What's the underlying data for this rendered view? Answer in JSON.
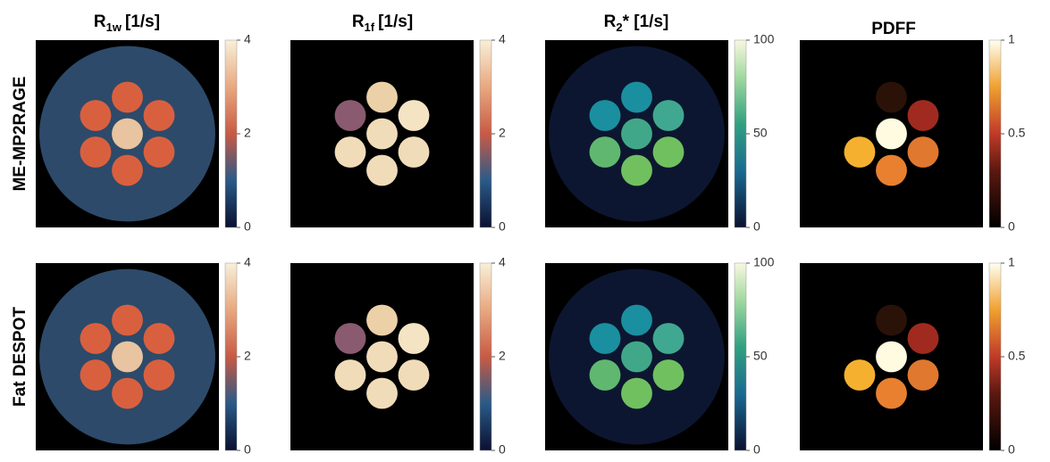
{
  "columns": [
    {
      "title": {
        "base": "R",
        "sub": "1w",
        "unit": "[1/s]"
      },
      "colorbar": {
        "lim": [
          0,
          4
        ],
        "ticks": [
          0,
          2,
          4
        ]
      }
    },
    {
      "title": {
        "base": "R",
        "sub": "1f",
        "unit": "[1/s]"
      },
      "colorbar": {
        "lim": [
          0,
          4
        ],
        "ticks": [
          0,
          2,
          4
        ]
      }
    },
    {
      "title": {
        "base": "R",
        "sub": "2",
        "unit": "* [1/s]"
      },
      "colorbar": {
        "lim": [
          0,
          100
        ],
        "ticks": [
          0,
          50,
          100
        ]
      }
    },
    {
      "title": {
        "base": "PDFF"
      },
      "colorbar": {
        "lim": [
          0,
          1
        ],
        "ticks": [
          0,
          0.5,
          1
        ]
      }
    }
  ],
  "rows": [
    "ME-MP2RAGE",
    "Fat DESPOT"
  ]
}
